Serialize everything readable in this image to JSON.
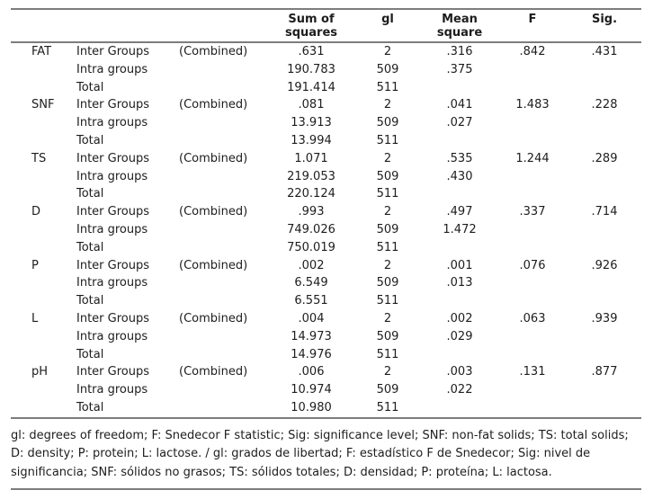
{
  "header": {
    "col_variable": "",
    "col_group": "",
    "col_combined": "",
    "col_sum_of_squares": "Sum of\nsquares",
    "col_gl": "gl",
    "col_mean_square": "Mean\nsquare",
    "col_f": "F",
    "col_sig": "Sig."
  },
  "groups": [
    {
      "variable": "FAT",
      "rows": [
        {
          "label": "Inter Groups",
          "combined": "(Combined)",
          "sum_sq": ".631",
          "gl": "2",
          "mean_sq": ".316",
          "f": ".842",
          "sig": ".431"
        },
        {
          "label": "Intra groups",
          "combined": "",
          "sum_sq": "190.783",
          "gl": "509",
          "mean_sq": ".375",
          "f": "",
          "sig": ""
        },
        {
          "label": "Total",
          "combined": "",
          "sum_sq": "191.414",
          "gl": "511",
          "mean_sq": "",
          "f": "",
          "sig": ""
        }
      ]
    },
    {
      "variable": "SNF",
      "rows": [
        {
          "label": "Inter Groups",
          "combined": "(Combined)",
          "sum_sq": ".081",
          "gl": "2",
          "mean_sq": ".041",
          "f": "1.483",
          "sig": ".228"
        },
        {
          "label": "Intra groups",
          "combined": "",
          "sum_sq": "13.913",
          "gl": "509",
          "mean_sq": ".027",
          "f": "",
          "sig": ""
        },
        {
          "label": "Total",
          "combined": "",
          "sum_sq": "13.994",
          "gl": "511",
          "mean_sq": "",
          "f": "",
          "sig": ""
        }
      ]
    },
    {
      "variable": "TS",
      "rows": [
        {
          "label": "Inter Groups",
          "combined": "(Combined)",
          "sum_sq": "1.071",
          "gl": "2",
          "mean_sq": ".535",
          "f": "1.244",
          "sig": ".289"
        },
        {
          "label": "Intra groups",
          "combined": "",
          "sum_sq": "219.053",
          "gl": "509",
          "mean_sq": ".430",
          "f": "",
          "sig": ""
        },
        {
          "label": "Total",
          "combined": "",
          "sum_sq": "220.124",
          "gl": "511",
          "mean_sq": "",
          "f": "",
          "sig": ""
        }
      ]
    },
    {
      "variable": "D",
      "rows": [
        {
          "label": "Inter Groups",
          "combined": "(Combined)",
          "sum_sq": ".993",
          "gl": "2",
          "mean_sq": ".497",
          "f": ".337",
          "sig": ".714"
        },
        {
          "label": "Intra groups",
          "combined": "",
          "sum_sq": "749.026",
          "gl": "509",
          "mean_sq": "1.472",
          "f": "",
          "sig": ""
        },
        {
          "label": "Total",
          "combined": "",
          "sum_sq": "750.019",
          "gl": "511",
          "mean_sq": "",
          "f": "",
          "sig": ""
        }
      ]
    },
    {
      "variable": "P",
      "rows": [
        {
          "label": "Inter Groups",
          "combined": "(Combined)",
          "sum_sq": ".002",
          "gl": "2",
          "mean_sq": ".001",
          "f": ".076",
          "sig": ".926"
        },
        {
          "label": "Intra groups",
          "combined": "",
          "sum_sq": "6.549",
          "gl": "509",
          "mean_sq": ".013",
          "f": "",
          "sig": ""
        },
        {
          "label": "Total",
          "combined": "",
          "sum_sq": "6.551",
          "gl": "511",
          "mean_sq": "",
          "f": "",
          "sig": ""
        }
      ]
    },
    {
      "variable": "L",
      "rows": [
        {
          "label": "Inter Groups",
          "combined": "(Combined)",
          "sum_sq": ".004",
          "gl": "2",
          "mean_sq": ".002",
          "f": ".063",
          "sig": ".939"
        },
        {
          "label": "Intra groups",
          "combined": "",
          "sum_sq": "14.973",
          "gl": "509",
          "mean_sq": ".029",
          "f": "",
          "sig": ""
        },
        {
          "label": "Total",
          "combined": "",
          "sum_sq": "14.976",
          "gl": "511",
          "mean_sq": "",
          "f": "",
          "sig": ""
        }
      ]
    },
    {
      "variable": "pH",
      "rows": [
        {
          "label": "Inter Groups",
          "combined": "(Combined)",
          "sum_sq": ".006",
          "gl": "2",
          "mean_sq": ".003",
          "f": ".131",
          "sig": ".877"
        },
        {
          "label": "Intra groups",
          "combined": "",
          "sum_sq": "10.974",
          "gl": "509",
          "mean_sq": ".022",
          "f": "",
          "sig": ""
        },
        {
          "label": "Total",
          "combined": "",
          "sum_sq": "10.980",
          "gl": "511",
          "mean_sq": "",
          "f": "",
          "sig": ""
        }
      ]
    }
  ],
  "footnote": "gl: degrees of freedom; F: Snedecor F statistic; Sig: significance level; SNF: non-fat solids; TS: total solids; D: density; P: protein; L: lactose. / gl: grados de libertad; F: estadístico F de Snedecor; Sig: nivel de significancia; SNF: sólidos no grasos; TS: sólidos totales; D: densidad; P: proteína; L: lactosa.",
  "colors": {
    "rule": "#7d7d7d",
    "text": "#1d1d1d",
    "background": "#ffffff"
  }
}
